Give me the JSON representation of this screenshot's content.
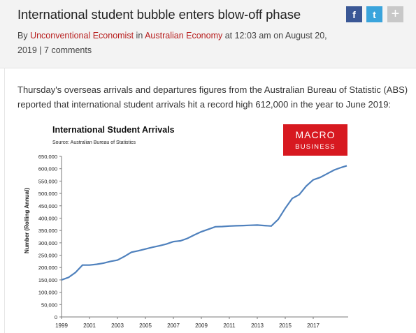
{
  "article": {
    "title": "International student bubble enters blow-off phase",
    "byline_prefix": "By ",
    "author": "Unconventional Economist",
    "in_word": " in ",
    "category": "Australian Economy",
    "date_text": " at 12:03 am on August 20, 2019 | ",
    "comments": "7 comments",
    "intro": "Thursday's overseas arrivals and departures figures from the Australian Bureau of Statistic (ABS) reported that international student arrivals hit a record high 612,000 in the year to June 2019:"
  },
  "share": {
    "facebook": "f",
    "twitter": "t",
    "more": "+"
  },
  "badge": {
    "line1": "MACRO",
    "line2": "BUSINESS",
    "color": "#d71920"
  },
  "chart_data": {
    "type": "line",
    "title": "International Student Arrivals",
    "subtitle": "Source: Australian Bureau of Statistics",
    "xlabel": "",
    "ylabel": "Number (Rolling Annual)",
    "ylim": [
      0,
      650000
    ],
    "yticks": [
      "0",
      "50,000",
      "100,000",
      "150,000",
      "200,000",
      "250,000",
      "300,000",
      "350,000",
      "400,000",
      "450,000",
      "500,000",
      "550,000",
      "600,000",
      "650,000"
    ],
    "xticks": [
      "1999",
      "2001",
      "2003",
      "2005",
      "2007",
      "2009",
      "2011",
      "2013",
      "2015",
      "2017"
    ],
    "xlim": [
      1999,
      2019.5
    ],
    "line_color": "#4f81bd",
    "grid": false,
    "series": [
      {
        "x": [
          1999.0,
          1999.5,
          2000.0,
          2000.5,
          2001.0,
          2001.5,
          2002.0,
          2002.5,
          2003.0,
          2003.5,
          2004.0,
          2004.5,
          2005.0,
          2005.5,
          2006.0,
          2006.5,
          2007.0,
          2007.5,
          2008.0,
          2008.5,
          2009.0,
          2009.5,
          2010.0,
          2010.5,
          2011.0,
          2011.5,
          2012.0,
          2012.5,
          2013.0,
          2013.5,
          2014.0,
          2014.5,
          2015.0,
          2015.5,
          2016.0,
          2016.5,
          2017.0,
          2017.5,
          2018.0,
          2018.5,
          2019.0,
          2019.4
        ],
        "y": [
          150000,
          160000,
          180000,
          210000,
          210000,
          213000,
          218000,
          225000,
          230000,
          245000,
          262000,
          268000,
          275000,
          282000,
          288000,
          295000,
          305000,
          308000,
          318000,
          332000,
          345000,
          355000,
          365000,
          366000,
          368000,
          369000,
          370000,
          371000,
          372000,
          370000,
          368000,
          395000,
          440000,
          480000,
          495000,
          530000,
          555000,
          565000,
          580000,
          595000,
          605000,
          612000
        ]
      }
    ]
  }
}
